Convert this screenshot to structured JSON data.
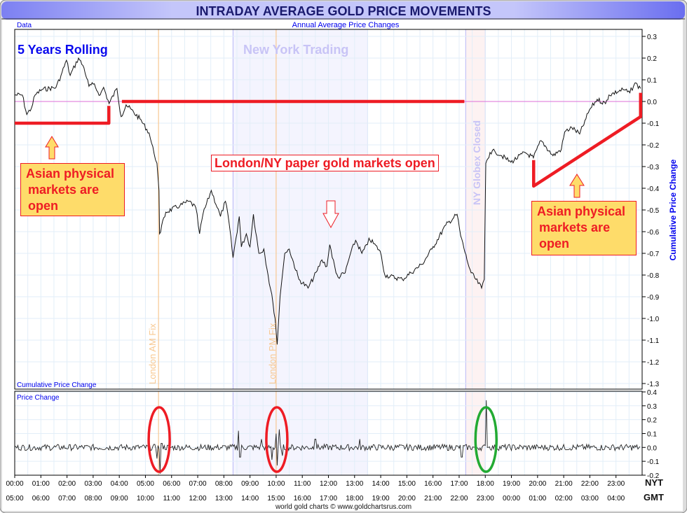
{
  "title": "INTRADAY AVERAGE GOLD PRICE MOVEMENTS",
  "header_left": "Data",
  "header_center": "Annual Average Price Changes",
  "footer": "world gold charts © www.goldchartsrus.com",
  "colors": {
    "title_text": "#1a1a6e",
    "accent_blue": "#0000ee",
    "annotation_red": "#ee1c24",
    "annotation_fill": "#fedc6a",
    "ny_band": "#f4f4fe",
    "globex_band": "#fdf2f2",
    "fix_line": "#fbbf7e",
    "zero_line": "#dd44cc",
    "ellipse_red": "#ee1c24",
    "ellipse_green": "#22aa33"
  },
  "annotations": {
    "rolling": "5 Years Rolling",
    "ny_trading": "New York Trading",
    "london_am_fix": "London AM Fix",
    "london_pm_fix": "London PM Fix",
    "globex_closed": "NY Globex Closed",
    "paper_markets": "London/NY paper gold markets open",
    "asian_left": [
      "Asian physical",
      "markets are",
      "open"
    ],
    "asian_right": [
      "Asian physical",
      "markets are",
      "open"
    ]
  },
  "chart_data": [
    {
      "type": "line",
      "title": "Annual Average Price Changes",
      "panel_label": "Cumulative Price Change",
      "ylabel": "Cumulative Price Change",
      "xlabel": "NYT / GMT",
      "xlim": [
        0,
        24
      ],
      "ylim": [
        -1.33,
        0.33
      ],
      "yticks": [
        "0.3",
        "0.2",
        "0.1",
        "0.0",
        "-0.1",
        "-0.2",
        "-0.3",
        "-0.4",
        "-0.5",
        "-0.6",
        "-0.7",
        "-0.8",
        "-0.9",
        "-1.0",
        "-1.1",
        "-1.2",
        "-1.3"
      ],
      "ytick_values": [
        0.3,
        0.2,
        0.1,
        0.0,
        -0.1,
        -0.2,
        -0.3,
        -0.4,
        -0.5,
        -0.6,
        -0.7,
        -0.8,
        -0.9,
        -1.0,
        -1.1,
        -1.2,
        -1.3
      ],
      "grid": true,
      "zero_line": 0.0,
      "bands": [
        {
          "name": "New York Trading",
          "from": 8.35,
          "to": 13.5
        },
        {
          "name": "NY Globex Closed",
          "from": 17.25,
          "to": 18.0
        }
      ],
      "fix_lines": [
        {
          "name": "London AM Fix",
          "x": 5.5
        },
        {
          "name": "London PM Fix",
          "x": 10.0
        }
      ],
      "series": [
        {
          "name": "Cumulative Price Change",
          "points": [
            [
              0,
              0.03
            ],
            [
              0.29,
              0.03
            ],
            [
              0.46,
              -0.06
            ],
            [
              0.64,
              -0.03
            ],
            [
              0.78,
              0.03
            ],
            [
              1.04,
              0.055
            ],
            [
              1.58,
              0.065
            ],
            [
              1.77,
              0.12
            ],
            [
              1.98,
              0.19
            ],
            [
              2.12,
              0.12
            ],
            [
              2.44,
              0.2
            ],
            [
              2.65,
              0.155
            ],
            [
              2.84,
              0.07
            ],
            [
              3.0,
              0.08
            ],
            [
              3.27,
              0.03
            ],
            [
              3.4,
              0.065
            ],
            [
              3.61,
              -0.01
            ],
            [
              3.91,
              0.06
            ],
            [
              4.07,
              -0.07
            ],
            [
              4.26,
              -0.015
            ],
            [
              4.79,
              -0.08
            ],
            [
              5.14,
              -0.145
            ],
            [
              5.33,
              -0.24
            ],
            [
              5.44,
              -0.285
            ],
            [
              5.52,
              -0.41
            ],
            [
              5.54,
              -0.61
            ],
            [
              5.78,
              -0.51
            ],
            [
              6.32,
              -0.48
            ],
            [
              6.67,
              -0.46
            ],
            [
              6.93,
              -0.49
            ],
            [
              7.07,
              -0.61
            ],
            [
              7.2,
              -0.52
            ],
            [
              7.52,
              -0.41
            ],
            [
              7.87,
              -0.53
            ],
            [
              8.06,
              -0.46
            ],
            [
              8.19,
              -0.55
            ],
            [
              8.35,
              -0.72
            ],
            [
              8.59,
              -0.53
            ],
            [
              8.67,
              -0.67
            ],
            [
              8.86,
              -0.61
            ],
            [
              9.0,
              -0.67
            ],
            [
              9.13,
              -0.52
            ],
            [
              9.34,
              -0.7
            ],
            [
              9.53,
              -0.68
            ],
            [
              9.69,
              -0.8
            ],
            [
              9.88,
              -0.93
            ],
            [
              9.96,
              -1.0
            ],
            [
              10.04,
              -1.12
            ],
            [
              10.15,
              -0.9
            ],
            [
              10.33,
              -0.7
            ],
            [
              10.5,
              -0.68
            ],
            [
              10.87,
              -0.82
            ],
            [
              11.22,
              -0.86
            ],
            [
              11.57,
              -0.78
            ],
            [
              11.75,
              -0.73
            ],
            [
              11.94,
              -0.76
            ],
            [
              12.05,
              -0.66
            ],
            [
              12.29,
              -0.79
            ],
            [
              12.37,
              -0.81
            ],
            [
              12.64,
              -0.79
            ],
            [
              12.82,
              -0.71
            ],
            [
              13.04,
              -0.64
            ],
            [
              13.28,
              -0.7
            ],
            [
              13.49,
              -0.66
            ],
            [
              13.55,
              -0.63
            ],
            [
              13.98,
              -0.69
            ],
            [
              14.16,
              -0.8
            ],
            [
              14.83,
              -0.82
            ],
            [
              15.15,
              -0.79
            ],
            [
              15.58,
              -0.75
            ],
            [
              15.96,
              -0.68
            ],
            [
              16.49,
              -0.57
            ],
            [
              16.92,
              -0.52
            ],
            [
              17.06,
              -0.62
            ],
            [
              17.3,
              -0.73
            ],
            [
              17.46,
              -0.79
            ],
            [
              17.86,
              -0.86
            ],
            [
              17.96,
              -0.82
            ],
            [
              18.02,
              -0.285
            ],
            [
              18.18,
              -0.235
            ],
            [
              18.37,
              -0.23
            ],
            [
              18.63,
              -0.25
            ],
            [
              18.98,
              -0.28
            ],
            [
              19.52,
              -0.235
            ],
            [
              19.84,
              -0.26
            ],
            [
              20.13,
              -0.18
            ],
            [
              20.59,
              -0.25
            ],
            [
              20.91,
              -0.22
            ],
            [
              21.04,
              -0.14
            ],
            [
              21.31,
              -0.12
            ],
            [
              21.61,
              -0.15
            ],
            [
              21.85,
              -0.08
            ],
            [
              21.98,
              -0.04
            ],
            [
              22.28,
              0.01
            ],
            [
              22.6,
              -0.01
            ],
            [
              22.73,
              0.03
            ],
            [
              23.27,
              0.055
            ],
            [
              23.53,
              0.04
            ],
            [
              23.72,
              0.085
            ],
            [
              23.94,
              0.06
            ]
          ]
        }
      ],
      "annotation_lines": [
        {
          "name": "asian-left-bracket",
          "points": [
            [
              0,
              -0.1
            ],
            [
              3.6,
              -0.1
            ],
            [
              3.6,
              -0.02
            ]
          ]
        },
        {
          "name": "paper-markets-line",
          "points": [
            [
              4.1,
              0.0
            ],
            [
              17.2,
              0.0
            ]
          ]
        },
        {
          "name": "asian-right-bracket",
          "points": [
            [
              19.85,
              -0.27
            ],
            [
              19.85,
              -0.39
            ],
            [
              23.94,
              -0.07
            ],
            [
              23.94,
              0.04
            ]
          ]
        }
      ]
    },
    {
      "type": "line",
      "panel_label": "Price Change",
      "xlim": [
        0,
        24
      ],
      "ylim": [
        -0.2,
        0.4
      ],
      "yticks": [
        "0.4",
        "0.3",
        "0.2",
        "0.1",
        "0.0",
        "-0.1",
        "-0.2"
      ],
      "ytick_values": [
        0.4,
        0.3,
        0.2,
        0.1,
        0.0,
        -0.1,
        -0.2
      ],
      "spikes": [
        [
          5.45,
          -0.08
        ],
        [
          5.55,
          -0.19
        ],
        [
          5.62,
          0.03
        ],
        [
          8.55,
          0.12
        ],
        [
          8.62,
          -0.07
        ],
        [
          9.45,
          0.06
        ],
        [
          9.85,
          -0.09
        ],
        [
          10.0,
          0.1
        ],
        [
          10.05,
          -0.13
        ],
        [
          10.12,
          0.13
        ],
        [
          10.25,
          -0.06
        ],
        [
          11.5,
          0.06
        ],
        [
          13.2,
          0.06
        ],
        [
          17.1,
          -0.07
        ],
        [
          18.05,
          0.34
        ],
        [
          18.1,
          0.0
        ]
      ],
      "highlights": [
        {
          "x": 5.5,
          "color": "red"
        },
        {
          "x": 10.0,
          "color": "red"
        },
        {
          "x": 18.0,
          "color": "green"
        }
      ]
    }
  ],
  "x_axis": {
    "nyt_label": "NYT",
    "gmt_label": "GMT",
    "nyt_ticks": [
      "00:00",
      "01:00",
      "02:00",
      "03:00",
      "04:00",
      "05:00",
      "06:00",
      "07:00",
      "08:00",
      "09:00",
      "10:00",
      "11:00",
      "12:00",
      "13:00",
      "14:00",
      "15:00",
      "16:00",
      "17:00",
      "18:00",
      "19:00",
      "20:00",
      "21:00",
      "22:00",
      "23:00"
    ],
    "gmt_ticks": [
      "05:00",
      "06:00",
      "07:00",
      "08:00",
      "09:00",
      "10:00",
      "11:00",
      "12:00",
      "13:00",
      "14:00",
      "15:00",
      "16:00",
      "17:00",
      "18:00",
      "19:00",
      "20:00",
      "21:00",
      "22:00",
      "23:00",
      "00:00",
      "01:00",
      "02:00",
      "03:00",
      "04:00"
    ]
  }
}
